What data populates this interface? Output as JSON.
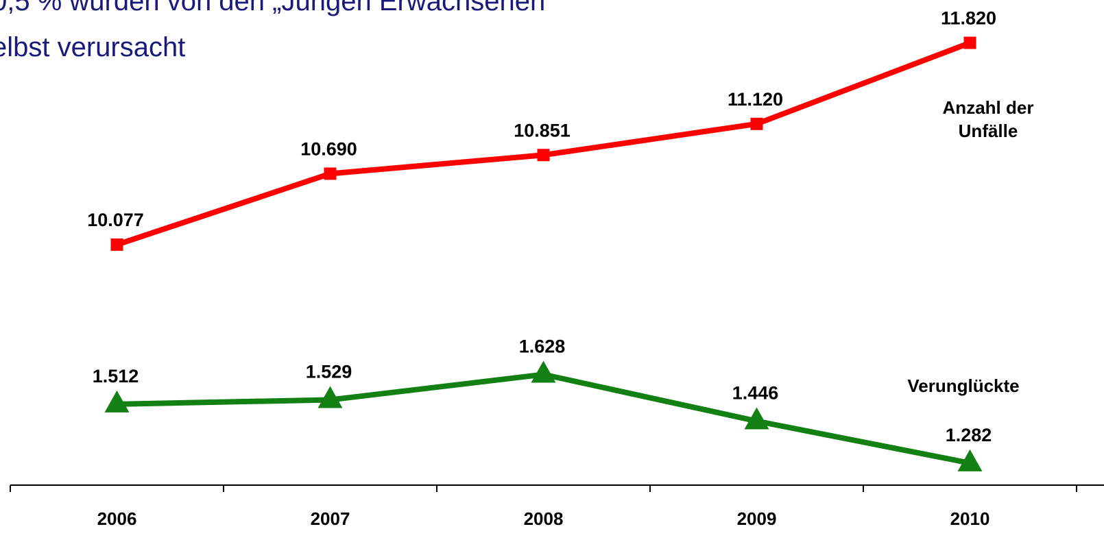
{
  "chart_data": {
    "type": "line",
    "title_lines": [
      "0,5 % wurden von den „Jungen Erwachsenen",
      "elbst verursacht"
    ],
    "categories": [
      "2006",
      "2007",
      "2008",
      "2009",
      "2010"
    ],
    "series": [
      {
        "name": "Anzahl der Unfälle",
        "color": "#ff0000",
        "marker": "square",
        "values": [
          10077,
          10690,
          10851,
          11120,
          11820
        ],
        "value_labels": [
          "10.077",
          "10.690",
          "10.851",
          "11.120",
          "11.820"
        ]
      },
      {
        "name": "Verunglückte",
        "color": "#138013",
        "marker": "triangle",
        "axis": "y2",
        "values": [
          1512,
          1529,
          1628,
          1446,
          1282
        ],
        "value_labels": [
          "1.512",
          "1.529",
          "1.628",
          "1.446",
          "1.282"
        ]
      }
    ],
    "ylim": [
      8000,
      12190
    ],
    "y2lim": [
      1196,
      3090
    ]
  }
}
